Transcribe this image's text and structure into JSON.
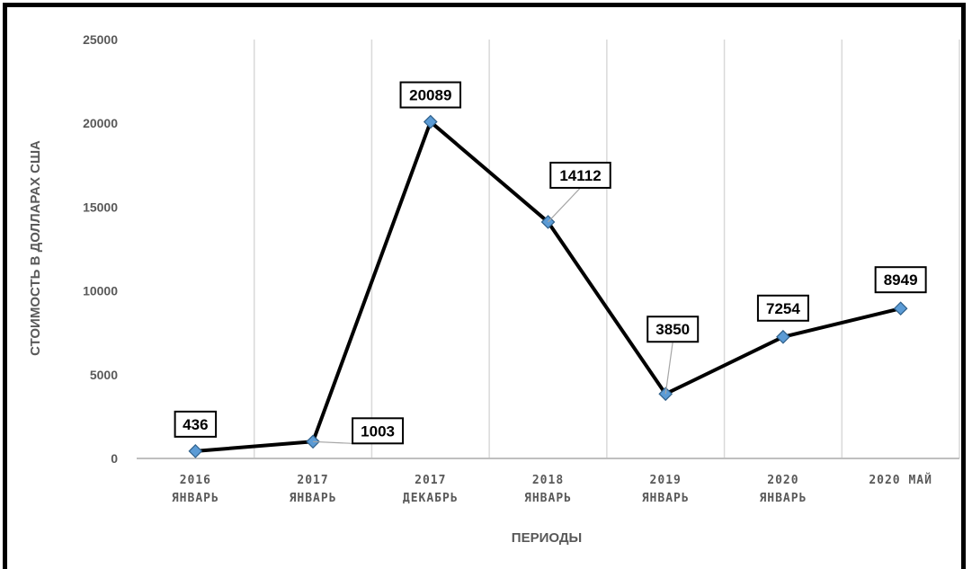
{
  "chart_data": {
    "type": "line",
    "title": "",
    "xlabel": "ПЕРИОДЫ",
    "ylabel": "СТОИМОСТЬ В ДОЛЛАРАХ США",
    "ylim": [
      0,
      25000
    ],
    "yticks": [
      "0",
      "5000",
      "10000",
      "15000",
      "20000",
      "25000"
    ],
    "categories": [
      [
        "2016",
        "ЯНВАРЬ"
      ],
      [
        "2017",
        "ЯНВАРЬ"
      ],
      [
        "2017",
        "ДЕКАБРЬ"
      ],
      [
        "2018",
        "ЯНВАРЬ"
      ],
      [
        "2019",
        "ЯНВАРЬ"
      ],
      [
        "2020",
        "ЯНВАРЬ"
      ],
      [
        "2020 МАЙ"
      ]
    ],
    "series": [
      {
        "values": [
          436,
          1003,
          20089,
          14112,
          3850,
          7254,
          8949
        ],
        "labels": [
          "436",
          "1003",
          "20089",
          "14112",
          "3850",
          "7254",
          "8949"
        ]
      }
    ],
    "grid": {
      "vertical": true,
      "horizontal": false
    },
    "legend": "none",
    "colors": {
      "line": "#000000",
      "marker": "#5b9bd5",
      "marker_edge": "#2e5f8a",
      "grid": "#d9d9d9",
      "axis": "#bfbfbf",
      "text": "#595959"
    }
  }
}
